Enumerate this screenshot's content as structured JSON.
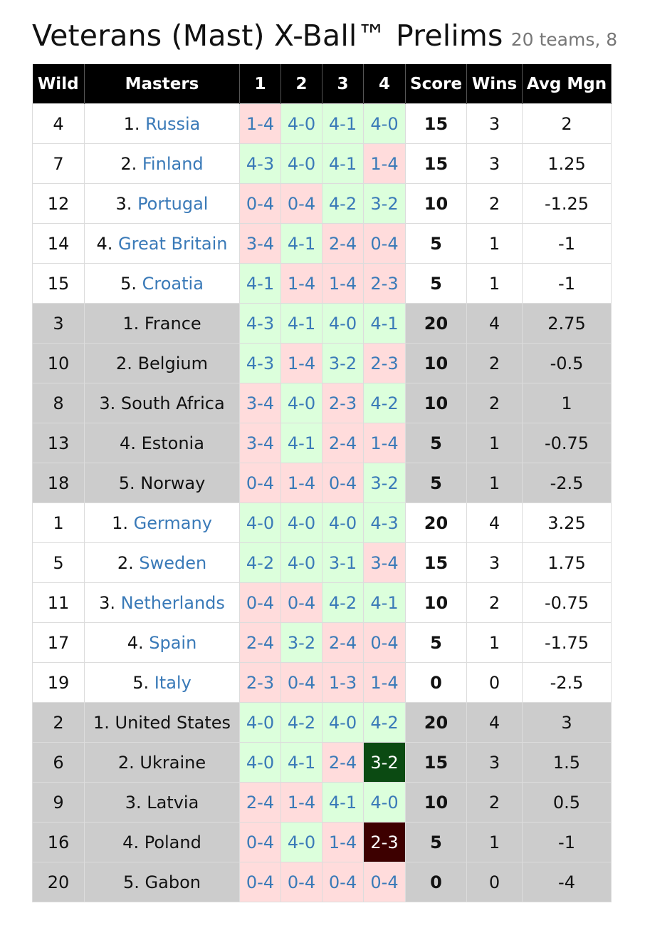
{
  "header": {
    "title": "Veterans (Mast) X-Ball™ Prelims",
    "subtitle": "20 teams, 8"
  },
  "columns": {
    "wild": "Wild",
    "masters": "Masters",
    "g1": "1",
    "g2": "2",
    "g3": "3",
    "g4": "4",
    "score": "Score",
    "wins": "Wins",
    "avg": "Avg Mgn"
  },
  "rows": [
    {
      "wild": "4",
      "rank": "1. ",
      "team": "Russia",
      "linked": true,
      "group": "a",
      "games": [
        {
          "s": "1-4",
          "r": "loss"
        },
        {
          "s": "4-0",
          "r": "win"
        },
        {
          "s": "4-1",
          "r": "win"
        },
        {
          "s": "4-0",
          "r": "win"
        }
      ],
      "score": "15",
      "wins": "3",
      "avg": "2"
    },
    {
      "wild": "7",
      "rank": "2. ",
      "team": "Finland",
      "linked": true,
      "group": "a",
      "games": [
        {
          "s": "4-3",
          "r": "win"
        },
        {
          "s": "4-0",
          "r": "win"
        },
        {
          "s": "4-1",
          "r": "win"
        },
        {
          "s": "1-4",
          "r": "loss"
        }
      ],
      "score": "15",
      "wins": "3",
      "avg": "1.25"
    },
    {
      "wild": "12",
      "rank": "3. ",
      "team": "Portugal",
      "linked": true,
      "group": "a",
      "games": [
        {
          "s": "0-4",
          "r": "loss"
        },
        {
          "s": "0-4",
          "r": "loss"
        },
        {
          "s": "4-2",
          "r": "win"
        },
        {
          "s": "3-2",
          "r": "win"
        }
      ],
      "score": "10",
      "wins": "2",
      "avg": "-1.25"
    },
    {
      "wild": "14",
      "rank": "4. ",
      "team": "Great Britain",
      "linked": true,
      "group": "a",
      "games": [
        {
          "s": "3-4",
          "r": "loss"
        },
        {
          "s": "4-1",
          "r": "win"
        },
        {
          "s": "2-4",
          "r": "loss"
        },
        {
          "s": "0-4",
          "r": "loss"
        }
      ],
      "score": "5",
      "wins": "1",
      "avg": "-1"
    },
    {
      "wild": "15",
      "rank": "5. ",
      "team": "Croatia",
      "linked": true,
      "group": "a",
      "games": [
        {
          "s": "4-1",
          "r": "win"
        },
        {
          "s": "1-4",
          "r": "loss"
        },
        {
          "s": "1-4",
          "r": "loss"
        },
        {
          "s": "2-3",
          "r": "loss"
        }
      ],
      "score": "5",
      "wins": "1",
      "avg": "-1"
    },
    {
      "wild": "3",
      "rank": "1. ",
      "team": "France",
      "linked": false,
      "group": "b",
      "games": [
        {
          "s": "4-3",
          "r": "win"
        },
        {
          "s": "4-1",
          "r": "win"
        },
        {
          "s": "4-0",
          "r": "win"
        },
        {
          "s": "4-1",
          "r": "win"
        }
      ],
      "score": "20",
      "wins": "4",
      "avg": "2.75"
    },
    {
      "wild": "10",
      "rank": "2. ",
      "team": "Belgium",
      "linked": false,
      "group": "b",
      "games": [
        {
          "s": "4-3",
          "r": "win"
        },
        {
          "s": "1-4",
          "r": "loss"
        },
        {
          "s": "3-2",
          "r": "win"
        },
        {
          "s": "2-3",
          "r": "loss"
        }
      ],
      "score": "10",
      "wins": "2",
      "avg": "-0.5"
    },
    {
      "wild": "8",
      "rank": "3. ",
      "team": "South Africa",
      "linked": false,
      "group": "b",
      "games": [
        {
          "s": "3-4",
          "r": "loss"
        },
        {
          "s": "4-0",
          "r": "win"
        },
        {
          "s": "2-3",
          "r": "loss"
        },
        {
          "s": "4-2",
          "r": "win"
        }
      ],
      "score": "10",
      "wins": "2",
      "avg": "1"
    },
    {
      "wild": "13",
      "rank": "4. ",
      "team": "Estonia",
      "linked": false,
      "group": "b",
      "games": [
        {
          "s": "3-4",
          "r": "loss"
        },
        {
          "s": "4-1",
          "r": "win"
        },
        {
          "s": "2-4",
          "r": "loss"
        },
        {
          "s": "1-4",
          "r": "loss"
        }
      ],
      "score": "5",
      "wins": "1",
      "avg": "-0.75"
    },
    {
      "wild": "18",
      "rank": "5. ",
      "team": "Norway",
      "linked": false,
      "group": "b",
      "games": [
        {
          "s": "0-4",
          "r": "loss"
        },
        {
          "s": "1-4",
          "r": "loss"
        },
        {
          "s": "0-4",
          "r": "loss"
        },
        {
          "s": "3-2",
          "r": "win"
        }
      ],
      "score": "5",
      "wins": "1",
      "avg": "-2.5"
    },
    {
      "wild": "1",
      "rank": "1. ",
      "team": "Germany",
      "linked": true,
      "group": "a",
      "games": [
        {
          "s": "4-0",
          "r": "win"
        },
        {
          "s": "4-0",
          "r": "win"
        },
        {
          "s": "4-0",
          "r": "win"
        },
        {
          "s": "4-3",
          "r": "win"
        }
      ],
      "score": "20",
      "wins": "4",
      "avg": "3.25"
    },
    {
      "wild": "5",
      "rank": "2. ",
      "team": "Sweden",
      "linked": true,
      "group": "a",
      "games": [
        {
          "s": "4-2",
          "r": "win"
        },
        {
          "s": "4-0",
          "r": "win"
        },
        {
          "s": "3-1",
          "r": "win"
        },
        {
          "s": "3-4",
          "r": "loss"
        }
      ],
      "score": "15",
      "wins": "3",
      "avg": "1.75"
    },
    {
      "wild": "11",
      "rank": "3. ",
      "team": "Netherlands",
      "linked": true,
      "group": "a",
      "games": [
        {
          "s": "0-4",
          "r": "loss"
        },
        {
          "s": "0-4",
          "r": "loss"
        },
        {
          "s": "4-2",
          "r": "win"
        },
        {
          "s": "4-1",
          "r": "win"
        }
      ],
      "score": "10",
      "wins": "2",
      "avg": "-0.75"
    },
    {
      "wild": "17",
      "rank": "4. ",
      "team": "Spain",
      "linked": true,
      "group": "a",
      "games": [
        {
          "s": "2-4",
          "r": "loss"
        },
        {
          "s": "3-2",
          "r": "win"
        },
        {
          "s": "2-4",
          "r": "loss"
        },
        {
          "s": "0-4",
          "r": "loss"
        }
      ],
      "score": "5",
      "wins": "1",
      "avg": "-1.75"
    },
    {
      "wild": "19",
      "rank": "5. ",
      "team": "Italy",
      "linked": true,
      "group": "a",
      "games": [
        {
          "s": "2-3",
          "r": "loss"
        },
        {
          "s": "0-4",
          "r": "loss"
        },
        {
          "s": "1-3",
          "r": "loss"
        },
        {
          "s": "1-4",
          "r": "loss"
        }
      ],
      "score": "0",
      "wins": "0",
      "avg": "-2.5"
    },
    {
      "wild": "2",
      "rank": "1. ",
      "team": "United States",
      "linked": false,
      "group": "b",
      "games": [
        {
          "s": "4-0",
          "r": "win"
        },
        {
          "s": "4-2",
          "r": "win"
        },
        {
          "s": "4-0",
          "r": "win"
        },
        {
          "s": "4-2",
          "r": "win"
        }
      ],
      "score": "20",
      "wins": "4",
      "avg": "3"
    },
    {
      "wild": "6",
      "rank": "2. ",
      "team": "Ukraine",
      "linked": false,
      "group": "b",
      "games": [
        {
          "s": "4-0",
          "r": "win"
        },
        {
          "s": "4-1",
          "r": "win"
        },
        {
          "s": "2-4",
          "r": "loss"
        },
        {
          "s": "3-2",
          "r": "strong-win"
        }
      ],
      "score": "15",
      "wins": "3",
      "avg": "1.5"
    },
    {
      "wild": "9",
      "rank": "3. ",
      "team": "Latvia",
      "linked": false,
      "group": "b",
      "games": [
        {
          "s": "2-4",
          "r": "loss"
        },
        {
          "s": "1-4",
          "r": "loss"
        },
        {
          "s": "4-1",
          "r": "win"
        },
        {
          "s": "4-0",
          "r": "win"
        }
      ],
      "score": "10",
      "wins": "2",
      "avg": "0.5"
    },
    {
      "wild": "16",
      "rank": "4. ",
      "team": "Poland",
      "linked": false,
      "group": "b",
      "games": [
        {
          "s": "0-4",
          "r": "loss"
        },
        {
          "s": "4-0",
          "r": "win"
        },
        {
          "s": "1-4",
          "r": "loss"
        },
        {
          "s": "2-3",
          "r": "strong-loss"
        }
      ],
      "score": "5",
      "wins": "1",
      "avg": "-1"
    },
    {
      "wild": "20",
      "rank": "5. ",
      "team": "Gabon",
      "linked": false,
      "group": "b",
      "games": [
        {
          "s": "0-4",
          "r": "loss"
        },
        {
          "s": "0-4",
          "r": "loss"
        },
        {
          "s": "0-4",
          "r": "loss"
        },
        {
          "s": "0-4",
          "r": "loss"
        }
      ],
      "score": "0",
      "wins": "0",
      "avg": "-4"
    }
  ]
}
